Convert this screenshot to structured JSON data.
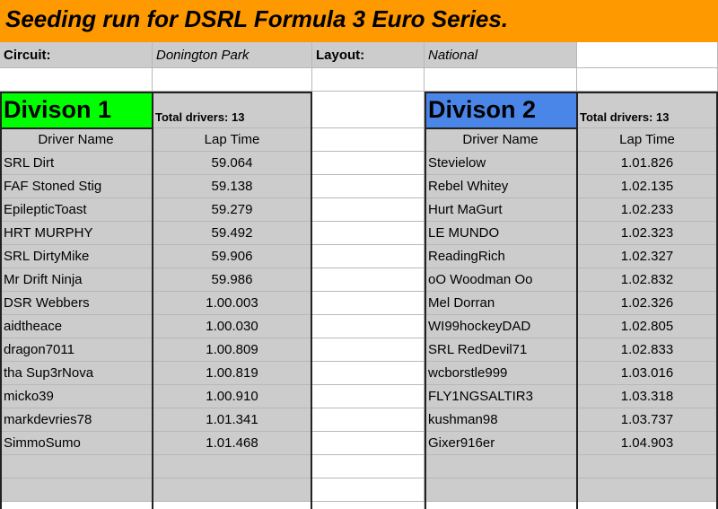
{
  "title": "Seeding run for DSRL Formula 3 Euro Series.",
  "info": {
    "circuit_label": "Circuit:",
    "circuit_value": "Donington Park",
    "layout_label": "Layout:",
    "layout_value": "National"
  },
  "colors": {
    "title_bg": "#ff9900",
    "div1_bg": "#00ff00",
    "div2_bg": "#4a86e8",
    "cell_gray": "#cccccc"
  },
  "div1": {
    "name": "Divison 1",
    "total": "Total drivers: 13",
    "col_driver": "Driver Name",
    "col_time": "Lap Time",
    "rows": [
      {
        "driver": "SRL Dirt",
        "time": "59.064"
      },
      {
        "driver": "FAF Stoned Stig",
        "time": "59.138"
      },
      {
        "driver": "EpilepticToast",
        "time": "59.279"
      },
      {
        "driver": "HRT MURPHY",
        "time": "59.492"
      },
      {
        "driver": "SRL DirtyMike",
        "time": "59.906"
      },
      {
        "driver": "Mr Drift Ninja",
        "time": "59.986"
      },
      {
        "driver": "DSR Webbers",
        "time": "1.00.003"
      },
      {
        "driver": "aidtheace",
        "time": "1.00.030"
      },
      {
        "driver": "dragon7011",
        "time": "1.00.809"
      },
      {
        "driver": "tha Sup3rNova",
        "time": "1.00.819"
      },
      {
        "driver": "micko39",
        "time": "1.00.910"
      },
      {
        "driver": "markdevries78",
        "time": "1.01.341"
      },
      {
        "driver": "SimmoSumo",
        "time": "1.01.468"
      }
    ]
  },
  "div2": {
    "name": "Divison 2",
    "total": "Total drivers: 13",
    "col_driver": "Driver Name",
    "col_time": "Lap Time",
    "rows": [
      {
        "driver": "Stevielow",
        "time": "1.01.826"
      },
      {
        "driver": "Rebel Whitey",
        "time": "1.02.135"
      },
      {
        "driver": "Hurt MaGurt",
        "time": "1.02.233"
      },
      {
        "driver": "LE MUNDO",
        "time": "1.02.323"
      },
      {
        "driver": "ReadingRich",
        "time": "1.02.327"
      },
      {
        "driver": "oO Woodman Oo",
        "time": "1.02.832"
      },
      {
        "driver": "Mel Dorran",
        "time": "1.02.326"
      },
      {
        "driver": "WI99hockeyDAD",
        "time": "1.02.805"
      },
      {
        "driver": "SRL RedDevil71",
        "time": "1.02.833"
      },
      {
        "driver": "wcborstle999",
        "time": "1.03.016"
      },
      {
        "driver": "FLY1NGSALTIR3",
        "time": "1.03.318"
      },
      {
        "driver": "kushman98",
        "time": "1.03.737"
      },
      {
        "driver": "Gixer916er",
        "time": "1.04.903"
      }
    ]
  }
}
